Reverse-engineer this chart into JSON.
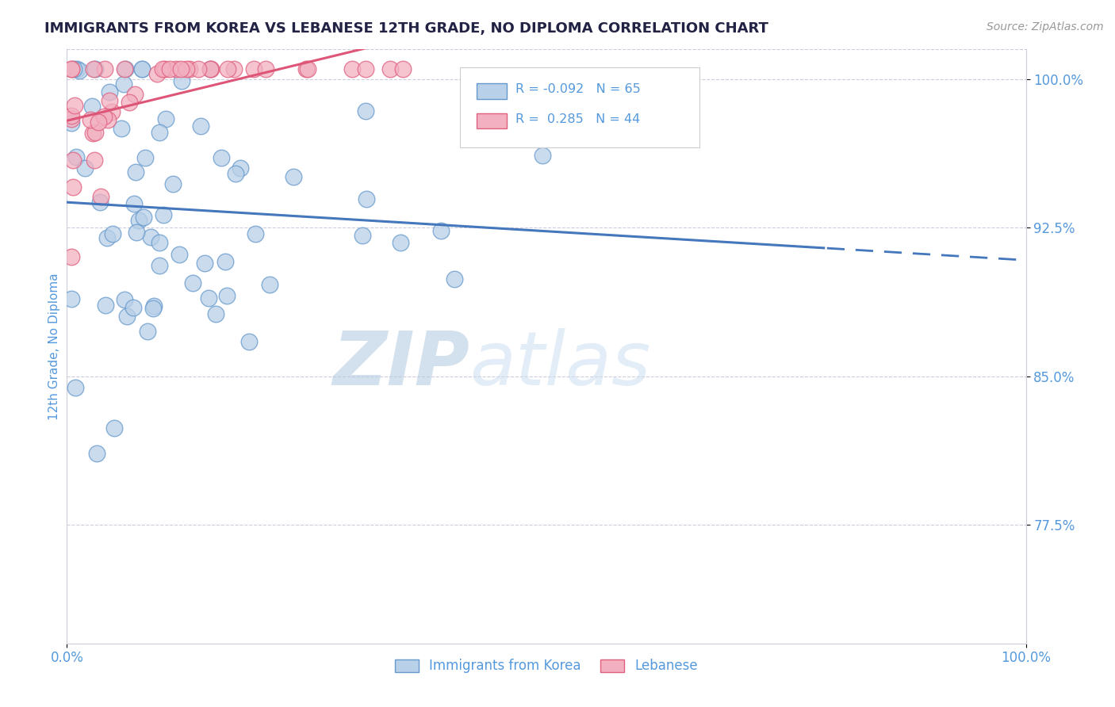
{
  "title": "IMMIGRANTS FROM KOREA VS LEBANESE 12TH GRADE, NO DIPLOMA CORRELATION CHART",
  "source": "Source: ZipAtlas.com",
  "ylabel": "12th Grade, No Diploma",
  "legend_label_blue": "Immigrants from Korea",
  "legend_label_pink": "Lebanese",
  "xlim": [
    0.0,
    1.0
  ],
  "ylim": [
    0.715,
    1.015
  ],
  "yticks": [
    0.775,
    0.85,
    0.925,
    1.0
  ],
  "ytick_labels": [
    "77.5%",
    "85.0%",
    "92.5%",
    "100.0%"
  ],
  "r_blue": -0.092,
  "n_blue": 65,
  "r_pink": 0.285,
  "n_pink": 44,
  "blue_fill": "#b8d0e8",
  "pink_fill": "#f2b0c0",
  "blue_edge": "#6699cc",
  "pink_edge": "#e06080",
  "blue_line": "#4477bb",
  "pink_line": "#dd5577",
  "watermark_zip": "ZIP",
  "watermark_atlas": "atlas",
  "background_color": "#ffffff",
  "title_color": "#222244",
  "axis_color": "#5599dd",
  "grid_color": "#ccccdd",
  "source_color": "#999999"
}
